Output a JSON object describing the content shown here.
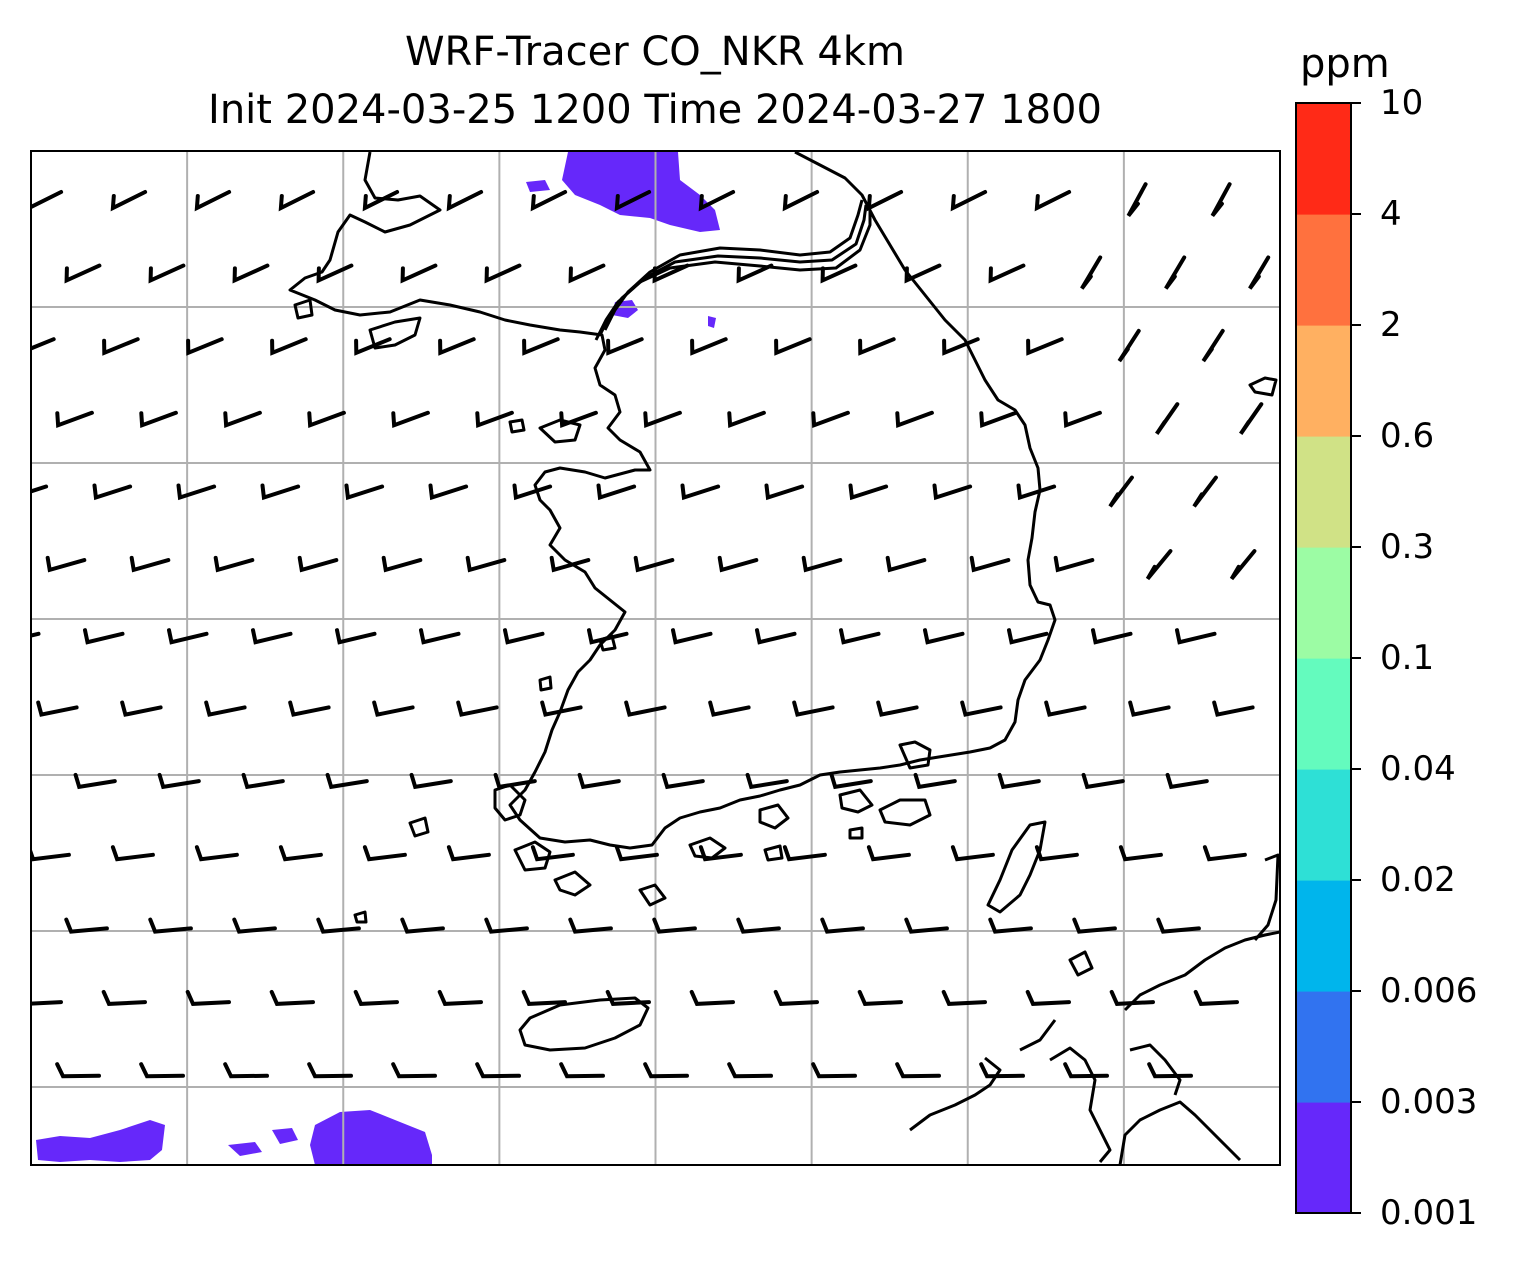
{
  "title": {
    "line1": "WRF-Tracer CO_NKR 4km",
    "line2": "Init 2024-03-25 1200 Time 2024-03-27 1800"
  },
  "colorbar": {
    "unit": "ppm",
    "ticks": [
      "0.001",
      "0.003",
      "0.006",
      "0.02",
      "0.04",
      "0.1",
      "0.3",
      "0.6",
      "2",
      "4",
      "10"
    ],
    "colors": [
      "#6628fa",
      "#3173f0",
      "#00b5ec",
      "#2ee0d6",
      "#64fbbe",
      "#9cfca4",
      "#d0e286",
      "#ffb061",
      "#ff713e",
      "#ff2a17"
    ]
  },
  "map": {
    "gridlines": true,
    "field_color": "#6628fa",
    "coast_color": "#000000",
    "grid_color": "#b0b0b0",
    "barb_color": "#000000"
  }
}
